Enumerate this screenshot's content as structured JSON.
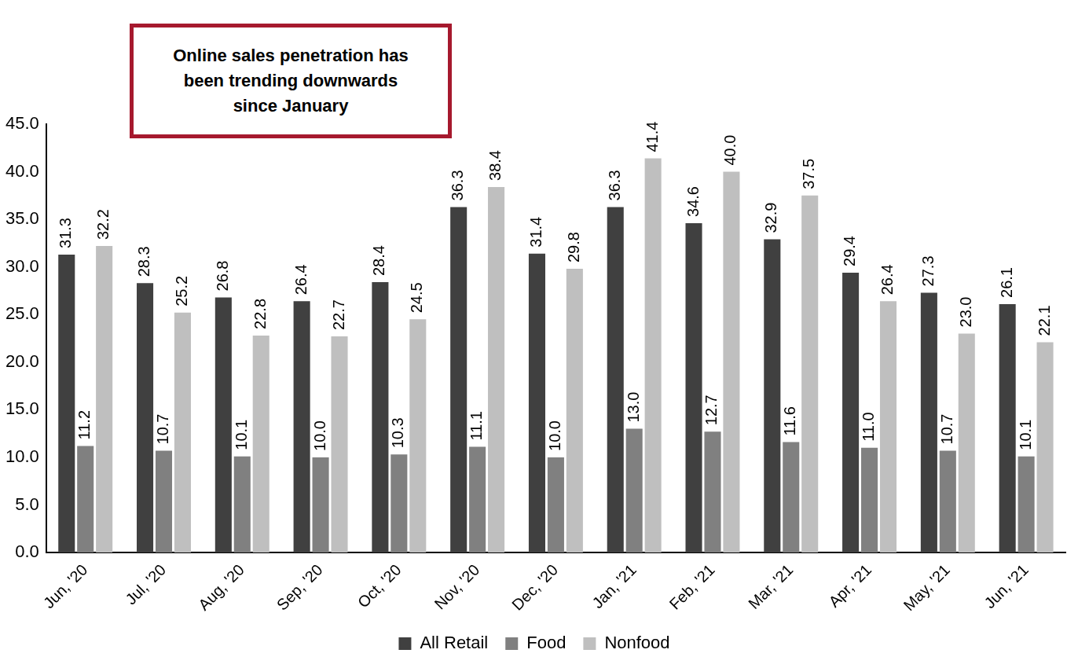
{
  "chart_data": {
    "type": "bar",
    "annotation": "Online sales penetration has been trending downwards since January",
    "categories": [
      "Jun, '20",
      "Jul, '20",
      "Aug, '20",
      "Sep, '20",
      "Oct, '20",
      "Nov, '20",
      "Dec, '20",
      "Jan, '21",
      "Feb, '21",
      "Mar, '21",
      "Apr, '21",
      "May, '21",
      "Jun, '21"
    ],
    "series": [
      {
        "name": "All Retail",
        "color": "#404040",
        "values": [
          31.3,
          28.3,
          26.8,
          26.4,
          28.4,
          36.3,
          31.4,
          36.3,
          34.6,
          32.9,
          29.4,
          27.3,
          26.1
        ],
        "value_labels": [
          "31.3",
          "28.3",
          "26.8",
          "26.4",
          "28.4",
          "36.3",
          "31.4",
          "36.3",
          "34.6",
          "32.9",
          "29.4",
          "27.3",
          "26.1"
        ]
      },
      {
        "name": "Food",
        "color": "#808080",
        "values": [
          11.2,
          10.7,
          10.1,
          10.0,
          10.3,
          11.1,
          10.0,
          13.0,
          12.7,
          11.6,
          11.0,
          10.7,
          10.1
        ],
        "value_labels": [
          "11.2",
          "10.7",
          "10.1",
          "10.0",
          "10.3",
          "11.1",
          "10.0",
          "13.0",
          "12.7",
          "11.6",
          "11.0",
          "10.7",
          "10.1"
        ]
      },
      {
        "name": "Nonfood",
        "color": "#bfbfbf",
        "values": [
          32.2,
          25.2,
          22.8,
          22.7,
          24.5,
          38.4,
          29.8,
          41.4,
          40.0,
          37.5,
          26.4,
          23.0,
          22.1
        ],
        "value_labels": [
          "32.2",
          "25.2",
          "22.8",
          "22.7",
          "24.5",
          "38.4",
          "29.8",
          "41.4",
          "40.0",
          "37.5",
          "26.4",
          "23.0",
          "22.1"
        ]
      }
    ],
    "ylim": [
      0,
      45
    ],
    "yticks": [
      {
        "value": 0,
        "label": "0.0"
      },
      {
        "value": 5,
        "label": "5.0"
      },
      {
        "value": 10,
        "label": "10.0"
      },
      {
        "value": 15,
        "label": "15.0"
      },
      {
        "value": 20,
        "label": "20.0"
      },
      {
        "value": 25,
        "label": "25.0"
      },
      {
        "value": 30,
        "label": "30.0"
      },
      {
        "value": 35,
        "label": "35.0"
      },
      {
        "value": 40,
        "label": "40.0"
      },
      {
        "value": 45,
        "label": "45.0"
      }
    ],
    "grid": false,
    "legend": "bottom",
    "data_labels": true
  }
}
